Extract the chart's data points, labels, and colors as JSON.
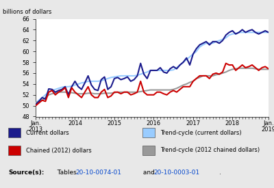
{
  "ylabel": "billions of dollars",
  "ylim": [
    48,
    66
  ],
  "yticks": [
    48,
    50,
    52,
    54,
    56,
    58,
    60,
    62,
    64,
    66
  ],
  "background_color": "#e8e8e8",
  "plot_background": "#ffffff",
  "legend_entries": [
    {
      "label": "Current dollars",
      "color": "#1a1a8c",
      "lw": 1.5
    },
    {
      "label": "Trend-cycle (current dollars)",
      "color": "#99ccff",
      "lw": 1.5
    },
    {
      "label": "Chained (2012) dollars",
      "color": "#cc0000",
      "lw": 1.5
    },
    {
      "label": "Trend-cycle (2012 chained dollars)",
      "color": "#999999",
      "lw": 1.5
    }
  ],
  "source_bold": "Source(s):",
  "source_normal": "  Tables ",
  "source_link1": "20-10-0074-01",
  "source_and": " and ",
  "source_link2": "20-10-0003-01",
  "source_end": ".",
  "current_dollars": [
    50.2,
    50.8,
    51.5,
    51.2,
    53.1,
    53.0,
    52.5,
    52.8,
    53.0,
    53.5,
    52.0,
    53.5,
    54.5,
    53.5,
    53.0,
    54.2,
    55.5,
    53.8,
    53.0,
    52.8,
    54.8,
    55.3,
    53.0,
    53.5,
    55.0,
    55.2,
    54.8,
    55.0,
    55.3,
    54.5,
    54.8,
    55.5,
    57.8,
    55.8,
    55.0,
    56.5,
    56.5,
    56.5,
    57.0,
    56.2,
    56.0,
    56.8,
    57.2,
    56.8,
    57.5,
    58.0,
    58.8,
    57.5,
    59.5,
    60.5,
    61.2,
    61.5,
    61.8,
    61.2,
    61.8,
    61.8,
    61.5,
    62.0,
    63.0,
    63.5,
    63.8,
    63.2,
    63.5,
    64.0,
    63.5,
    63.8,
    64.0,
    63.5,
    63.2,
    63.5,
    63.8,
    63.5
  ],
  "trend_current": [
    50.5,
    51.0,
    51.5,
    52.0,
    52.5,
    52.8,
    53.0,
    53.2,
    53.4,
    53.5,
    53.5,
    53.6,
    53.8,
    54.0,
    54.2,
    54.3,
    54.5,
    54.5,
    54.5,
    54.5,
    54.6,
    54.8,
    55.0,
    55.2,
    55.3,
    55.4,
    55.5,
    55.5,
    55.5,
    55.5,
    55.5,
    55.6,
    55.8,
    56.0,
    56.2,
    56.5,
    56.5,
    56.5,
    56.5,
    56.5,
    56.5,
    56.5,
    56.6,
    57.0,
    57.5,
    58.0,
    58.5,
    59.0,
    59.5,
    60.0,
    60.8,
    61.2,
    61.5,
    61.5,
    61.5,
    61.8,
    62.0,
    62.2,
    62.5,
    63.0,
    63.2,
    63.3,
    63.5,
    63.5,
    63.5,
    63.5,
    63.5,
    63.5,
    63.5,
    63.5,
    63.5,
    63.5
  ],
  "chained_dollars": [
    50.0,
    50.5,
    51.0,
    50.8,
    52.5,
    52.8,
    52.0,
    52.5,
    52.8,
    53.3,
    51.5,
    53.3,
    52.5,
    52.0,
    51.5,
    52.5,
    53.5,
    52.0,
    51.5,
    51.5,
    52.5,
    53.0,
    51.5,
    51.8,
    52.5,
    52.5,
    52.2,
    52.5,
    52.5,
    52.0,
    52.2,
    52.5,
    54.5,
    52.5,
    52.0,
    52.0,
    52.0,
    52.5,
    52.5,
    52.2,
    52.0,
    52.5,
    52.8,
    52.5,
    53.0,
    53.5,
    53.5,
    53.5,
    54.5,
    55.0,
    55.5,
    55.5,
    55.5,
    55.0,
    55.8,
    56.0,
    55.8,
    56.2,
    57.8,
    57.5,
    57.5,
    56.5,
    57.0,
    57.5,
    57.0,
    57.2,
    57.5,
    57.0,
    56.5,
    57.0,
    57.2,
    56.8
  ],
  "trend_chained": [
    50.5,
    50.8,
    51.0,
    51.5,
    52.0,
    52.2,
    52.3,
    52.5,
    52.5,
    52.5,
    52.4,
    52.4,
    52.3,
    52.2,
    52.2,
    52.2,
    52.3,
    52.3,
    52.2,
    52.2,
    52.2,
    52.3,
    52.3,
    52.3,
    52.4,
    52.5,
    52.5,
    52.5,
    52.5,
    52.5,
    52.5,
    52.5,
    52.6,
    52.7,
    52.8,
    52.9,
    52.9,
    52.9,
    52.9,
    52.9,
    52.9,
    52.9,
    53.0,
    53.2,
    53.5,
    53.8,
    54.0,
    54.3,
    54.5,
    55.0,
    55.2,
    55.5,
    55.5,
    55.5,
    55.5,
    55.7,
    55.8,
    56.0,
    56.2,
    56.5,
    56.7,
    56.8,
    56.9,
    56.9,
    56.9,
    56.9,
    56.9,
    56.8,
    56.7,
    56.7,
    56.7,
    56.7
  ]
}
